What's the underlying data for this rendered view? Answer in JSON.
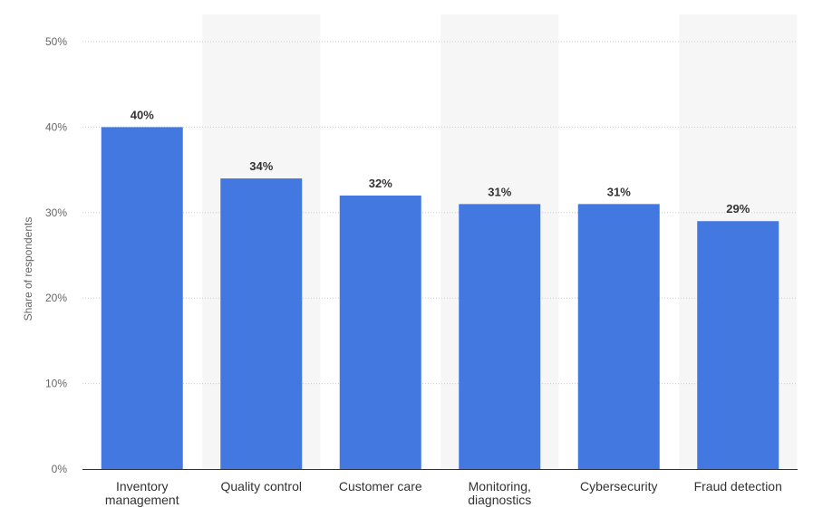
{
  "chart_data": {
    "type": "bar",
    "title": "",
    "xlabel": "",
    "ylabel": "Share of respondents",
    "categories": [
      [
        "Inventory",
        "management"
      ],
      [
        "Quality control"
      ],
      [
        "Customer care"
      ],
      [
        "Monitoring,",
        "diagnostics"
      ],
      [
        "Cybersecurity"
      ],
      [
        "Fraud detection"
      ]
    ],
    "values": [
      40,
      34,
      32,
      31,
      31,
      29
    ],
    "value_labels": [
      "40%",
      "34%",
      "32%",
      "31%",
      "31%",
      "29%"
    ],
    "ylim": [
      0,
      50
    ],
    "y_ticks": [
      0,
      10,
      20,
      30,
      40,
      50
    ],
    "y_tick_labels": [
      "0%",
      "10%",
      "20%",
      "30%",
      "40%",
      "50%"
    ],
    "grid": true,
    "legend": "none",
    "colors": {
      "bar": "#4278e0",
      "band": "#f6f6f6",
      "grid": "#cccccc",
      "axis": "#333333"
    }
  }
}
